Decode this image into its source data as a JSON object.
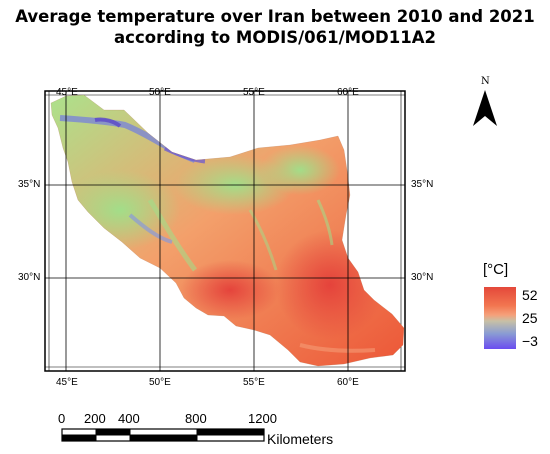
{
  "title": {
    "line1": "Average temperature over Iran between 2010 and 2021",
    "line2": "according to MODIS/061/MOD11A2"
  },
  "graticule": {
    "lon_labels": [
      "45°E",
      "50°E",
      "55°E",
      "60°E"
    ],
    "lat_labels": [
      "35°N",
      "30°N"
    ]
  },
  "north_arrow": {
    "letter": "N",
    "icon": "north-arrow-icon"
  },
  "legend": {
    "unit": "[°C]",
    "max": "52",
    "mid": "25",
    "min": "−3",
    "colors": {
      "high": "#e4483a",
      "mid": "#c7c0a6",
      "low": "#6a4cf0"
    }
  },
  "scale_bar": {
    "labels": [
      "0",
      "200",
      "400",
      "800",
      "1200"
    ],
    "unit": "Kilometers"
  },
  "colors": {
    "hot": "#ee5a3c",
    "warm": "#f08a5c",
    "mild": "#a6e08a",
    "cool": "#7a90d8",
    "cold": "#5a46c8"
  }
}
